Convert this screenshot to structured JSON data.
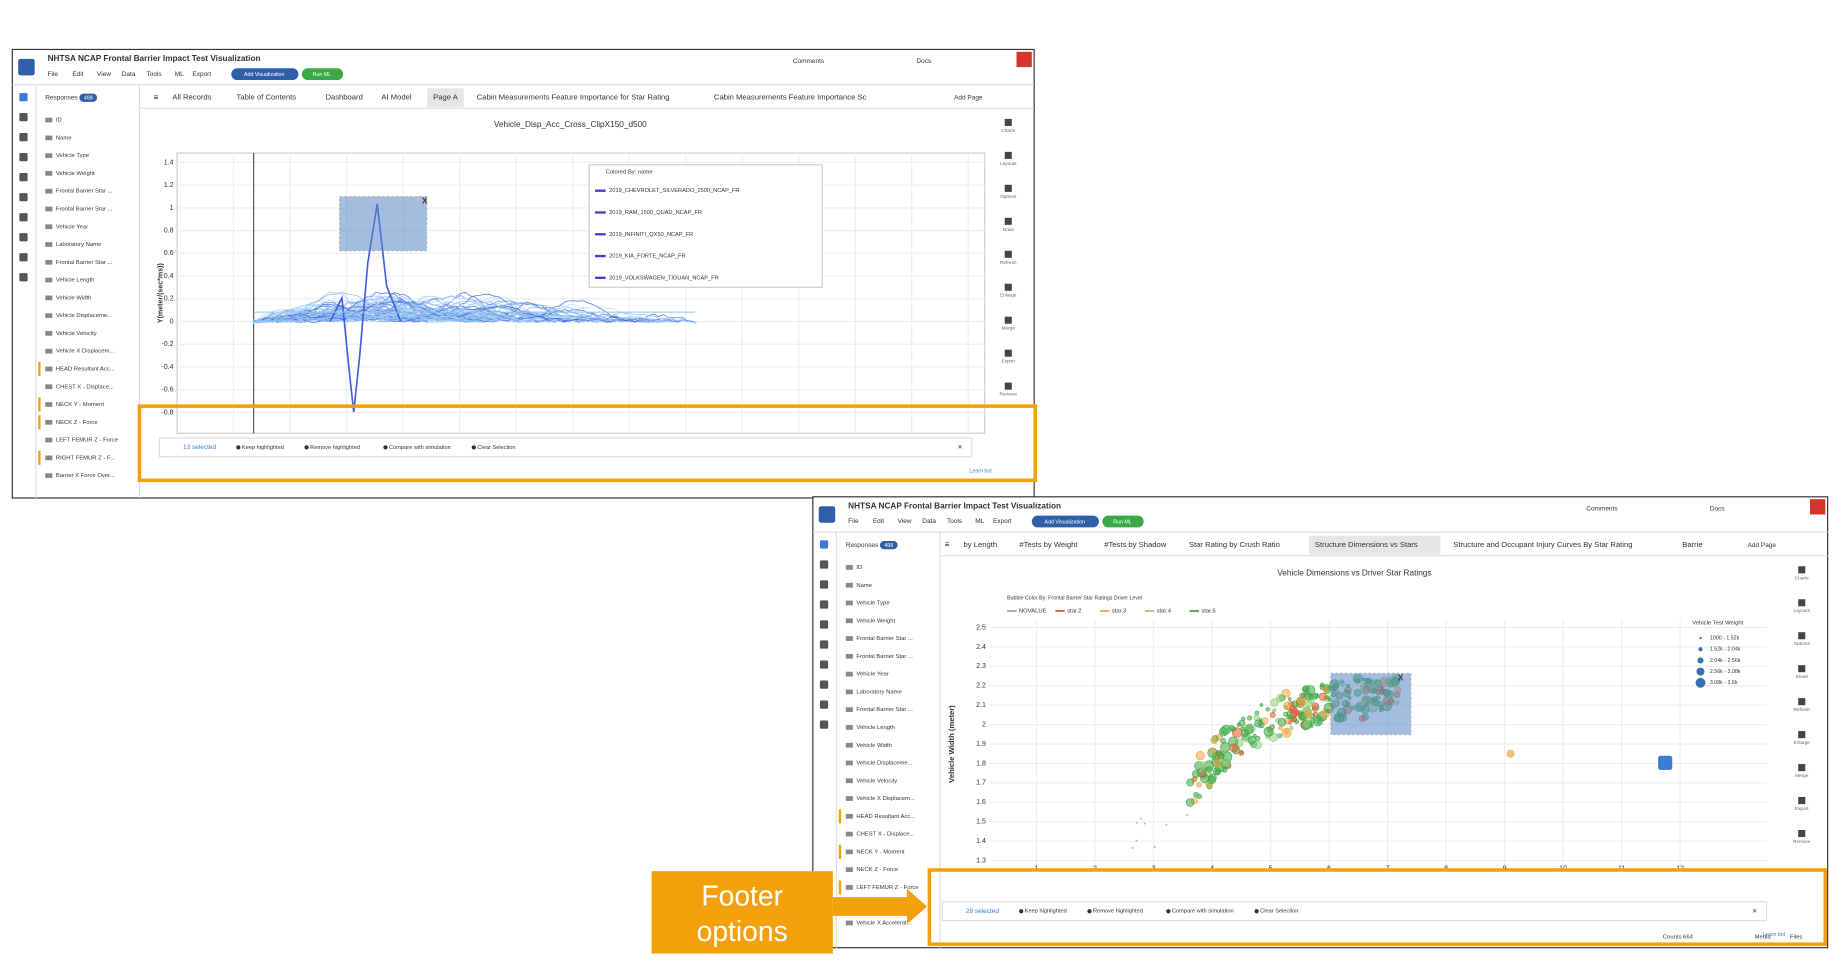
{
  "windows": [
    {
      "app_title": "NHTSA NCAP Frontal Barrier Impact Test Visualization",
      "menu": [
        "File",
        "Edit",
        "View",
        "Data",
        "Tools",
        "ML",
        "Export"
      ],
      "buttons": [
        "Add Visualization",
        "Run ML"
      ],
      "toolbar": [
        "Comments",
        "Docs"
      ],
      "responses_label": "Responses",
      "responses_count": "498",
      "fields": [
        "ID",
        "Name",
        "Vehicle Type",
        "Vehicle Weight",
        "Frontal Barrier Star ...",
        "Frontal Barrier Star ...",
        "Vehicle Year",
        "Laboratory Name",
        "Frontal Barrier Star ...",
        "Vehicle Length",
        "Vehicle Width",
        "Vehicle Displaceme...",
        "Vehicle Velocity",
        "Vehicle X Displacem...",
        "HEAD Resultant Acc...",
        "CHEST X - Displace...",
        "NECK Y - Moment",
        "NECK Z - Force",
        "LEFT FEMUR Z - Force",
        "RIGHT FEMUR Z - F...",
        "Barrier X Force Over..."
      ],
      "tabs": [
        "All Records",
        "Table of Contents",
        "Dashboard",
        "AI Model",
        "Page A",
        "Cabin Measurements Feature Importance for Star Rating",
        "Cabin Measurements Feature Importance Sc"
      ],
      "add_page": "Add Page",
      "side_tools": [
        "Charts",
        "Layouts",
        "Options",
        "Draw",
        "Refresh",
        "Enlarge",
        "Merge",
        "Export",
        "Remove"
      ],
      "chart": {
        "kind": "lines",
        "title": "Vehicle_Disp_Acc_Cross_ClipX150_d500",
        "y_label": "Y(meter/(sec*ms))",
        "yticks": [
          "1.4",
          "1.2",
          "1",
          "0.8",
          "0.6",
          "0.4",
          "0.2",
          "0",
          "-0.2",
          "-0.4",
          "-0.6",
          "-0.8"
        ],
        "legend_title": "Colored By: name",
        "legend": [
          "2019_CHEVROLET_SILVERADO_2500_NCAP_FR",
          "2019_RAM_1500_QUAD_NCAP_FR",
          "2019_INFINITI_QX50_NCAP_FR",
          "2019_KIA_FORTE_NCAP_FR",
          "2019_VOLKSWAGEN_TIGUAN_NCAP_FR"
        ],
        "selection_close": "X"
      },
      "footer": {
        "selected": "13 selected",
        "actions": [
          "Keep highlighted",
          "Remove highlighted",
          "Compare with simulation",
          "Clear Selection"
        ],
        "close": "×",
        "learn": "Learn bot"
      }
    },
    {
      "app_title": "NHTSA NCAP Frontal Barrier Impact Test Visualization",
      "menu": [
        "File",
        "Edit",
        "View",
        "Data",
        "Tools",
        "ML",
        "Export"
      ],
      "buttons": [
        "Add Visualization",
        "Run ML"
      ],
      "toolbar": [
        "Comments",
        "Docs"
      ],
      "responses_label": "Responses",
      "responses_count": "498",
      "fields": [
        "ID",
        "Name",
        "Vehicle Type",
        "Vehicle Weight",
        "Frontal Barrier Star ...",
        "Frontal Barrier Star ...",
        "Vehicle Year",
        "Laboratory Name",
        "Frontal Barrier Star ...",
        "Vehicle Length",
        "Vehicle Width",
        "Vehicle Displaceme...",
        "Vehicle Velocity",
        "Vehicle X Displacem...",
        "HEAD Resultant Acc...",
        "CHEST X - Displace...",
        "NECK Y - Moment",
        "NECK Z - Force",
        "LEFT FEMUR Z - Force",
        "Barrier X Force Over...",
        "Vehicle X Accelerat..."
      ],
      "tabs": [
        "by Length",
        "#Tests by Weight",
        "#Tests by Shadow",
        "Star Rating by Crush Ratio",
        "Structure Dimensions vs Stars",
        "Structure and Occupant Injury Curves By Star Rating",
        "Barrie"
      ],
      "add_page": "Add Page",
      "side_tools": [
        "Charts",
        "Layouts",
        "Options",
        "Share",
        "Refresh",
        "Enlarge",
        "Merge",
        "Export",
        "Remove"
      ],
      "chart": {
        "kind": "scatter",
        "title": "Vehicle Dimensions vs Driver Star Ratings",
        "y_label": "Vehicle Width (meter)",
        "yticks": [
          "2.5",
          "2.4",
          "2.3",
          "2.2",
          "2.1",
          "2",
          "1.9",
          "1.8",
          "1.7",
          "1.6",
          "1.5",
          "1.4",
          "1.3"
        ],
        "xticks": [
          "1",
          "2",
          "3",
          "4",
          "5",
          "6",
          "7",
          "8",
          "9",
          "10",
          "11",
          "12"
        ],
        "legend_title": "Bubble Color By: Frontal Barrier Star Ratings Driver Level",
        "legend": [
          {
            "name": "NOVALUE",
            "color": "#9e9e9e"
          },
          {
            "name": "star.2",
            "color": "#e4572e"
          },
          {
            "name": "star.3",
            "color": "#f2a33a"
          },
          {
            "name": "star.4",
            "color": "#8fd07e"
          },
          {
            "name": "star.5",
            "color": "#3aa845"
          }
        ],
        "size_title": "Vehicle Test Weight",
        "sizes": [
          "1000 - 1.52k",
          "1.52k - 2.04k",
          "2.04k - 2.56k",
          "2.56k - 3.08k",
          "3.08k - 3.6k"
        ],
        "selection_close": "X"
      },
      "footer": {
        "selected": "28 selected",
        "actions": [
          "Keep highlighted",
          "Remove highlighted",
          "Compare with simulation",
          "Clear Selection"
        ],
        "close": "×",
        "learn": "Learn bot"
      },
      "status": [
        "Counts 664",
        "Media",
        "Files"
      ]
    }
  ],
  "callout": [
    "Footer",
    "options"
  ]
}
